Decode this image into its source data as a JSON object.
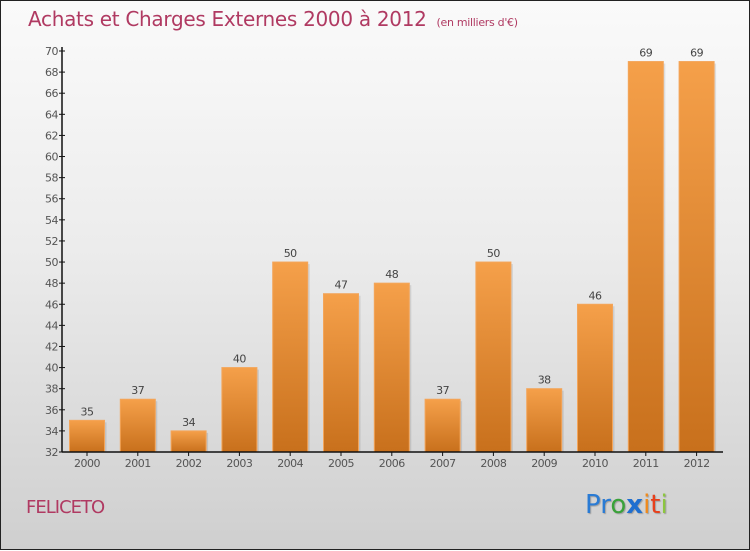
{
  "chart_data": {
    "type": "bar",
    "title": "Achats et Charges Externes 2000 à 2012",
    "subtitle": "(en milliers d'€)",
    "xlabel": "",
    "ylabel": "",
    "categories": [
      "2000",
      "2001",
      "2002",
      "2003",
      "2004",
      "2005",
      "2006",
      "2007",
      "2008",
      "2009",
      "2010",
      "2011",
      "2012"
    ],
    "values": [
      35,
      37,
      34,
      40,
      50,
      47,
      48,
      37,
      50,
      38,
      46,
      69,
      69
    ],
    "ylim": [
      32,
      70
    ],
    "yticks": [
      32,
      34,
      36,
      38,
      40,
      42,
      44,
      46,
      48,
      50,
      52,
      54,
      56,
      58,
      60,
      62,
      64,
      66,
      68,
      70
    ],
    "grid": false,
    "legend": "none",
    "bar_color": "#f5a04a",
    "bar_color_bottom": "#c8701c"
  },
  "footer": {
    "city": "FELICETO",
    "logo": [
      {
        "text": "P",
        "color": "#2a7bd4"
      },
      {
        "text": "r",
        "color": "#2a7bd4"
      },
      {
        "text": "o",
        "color": "#3aa23a"
      },
      {
        "text": "x",
        "color": "#1f6fd0"
      },
      {
        "text": "i",
        "color": "#f08a1c"
      },
      {
        "text": "t",
        "color": "#e8401c"
      },
      {
        "text": "i",
        "color": "#8cc63f"
      }
    ]
  }
}
